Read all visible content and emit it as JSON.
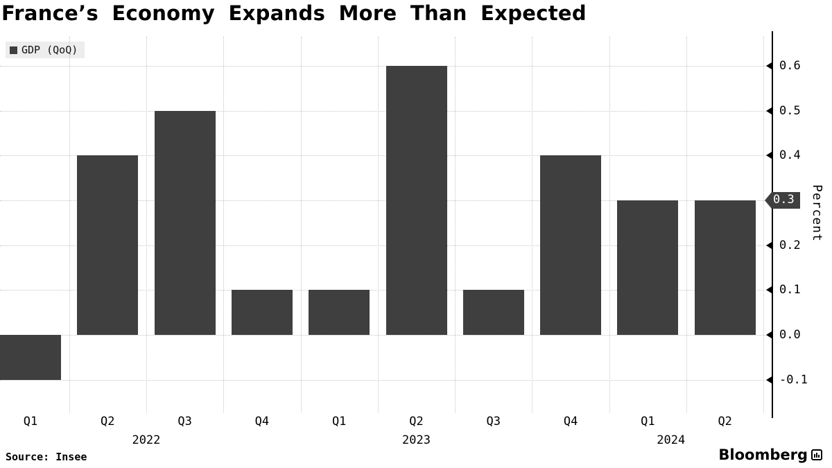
{
  "title": "France’s Economy Expands More Than Expected",
  "legend": {
    "label": "GDP (QoQ)",
    "swatch_color": "#3f3f3f"
  },
  "axis": {
    "badge": "0.3",
    "ylabel": "Percent"
  },
  "source": "Source: Insee",
  "brand": {
    "name": "Bloomberg"
  },
  "colors": {
    "bar": "#3f3f3f",
    "grid": "#c4c4c4",
    "axis": "#000000",
    "badge_bg": "#3f3f3f",
    "badge_text": "#ffffff"
  },
  "chart_data": {
    "type": "bar",
    "series_name": "GDP (QoQ)",
    "categories": [
      "Q1",
      "Q2",
      "Q3",
      "Q4",
      "Q1",
      "Q2",
      "Q3",
      "Q4",
      "Q1",
      "Q2"
    ],
    "values": [
      -0.1,
      0.4,
      0.5,
      0.1,
      0.1,
      0.6,
      0.1,
      0.4,
      0.3,
      0.3
    ],
    "year_labels": [
      {
        "label": "2022",
        "position_index": 1.5
      },
      {
        "label": "2023",
        "position_index": 5.0
      },
      {
        "label": "2024",
        "position_index": 8.3
      }
    ],
    "title": "France’s Economy Expands More Than Expected",
    "xlabel": "",
    "ylabel": "Percent",
    "ylim": [
      -0.15,
      0.68
    ],
    "yticks": [
      "-0.1",
      "0.0",
      "0.1",
      "0.2",
      "0.3",
      "0.4",
      "0.5",
      "0.6"
    ],
    "current_value": 0.3,
    "grid": true,
    "legend_position": "top-left",
    "axis_side": "right"
  }
}
